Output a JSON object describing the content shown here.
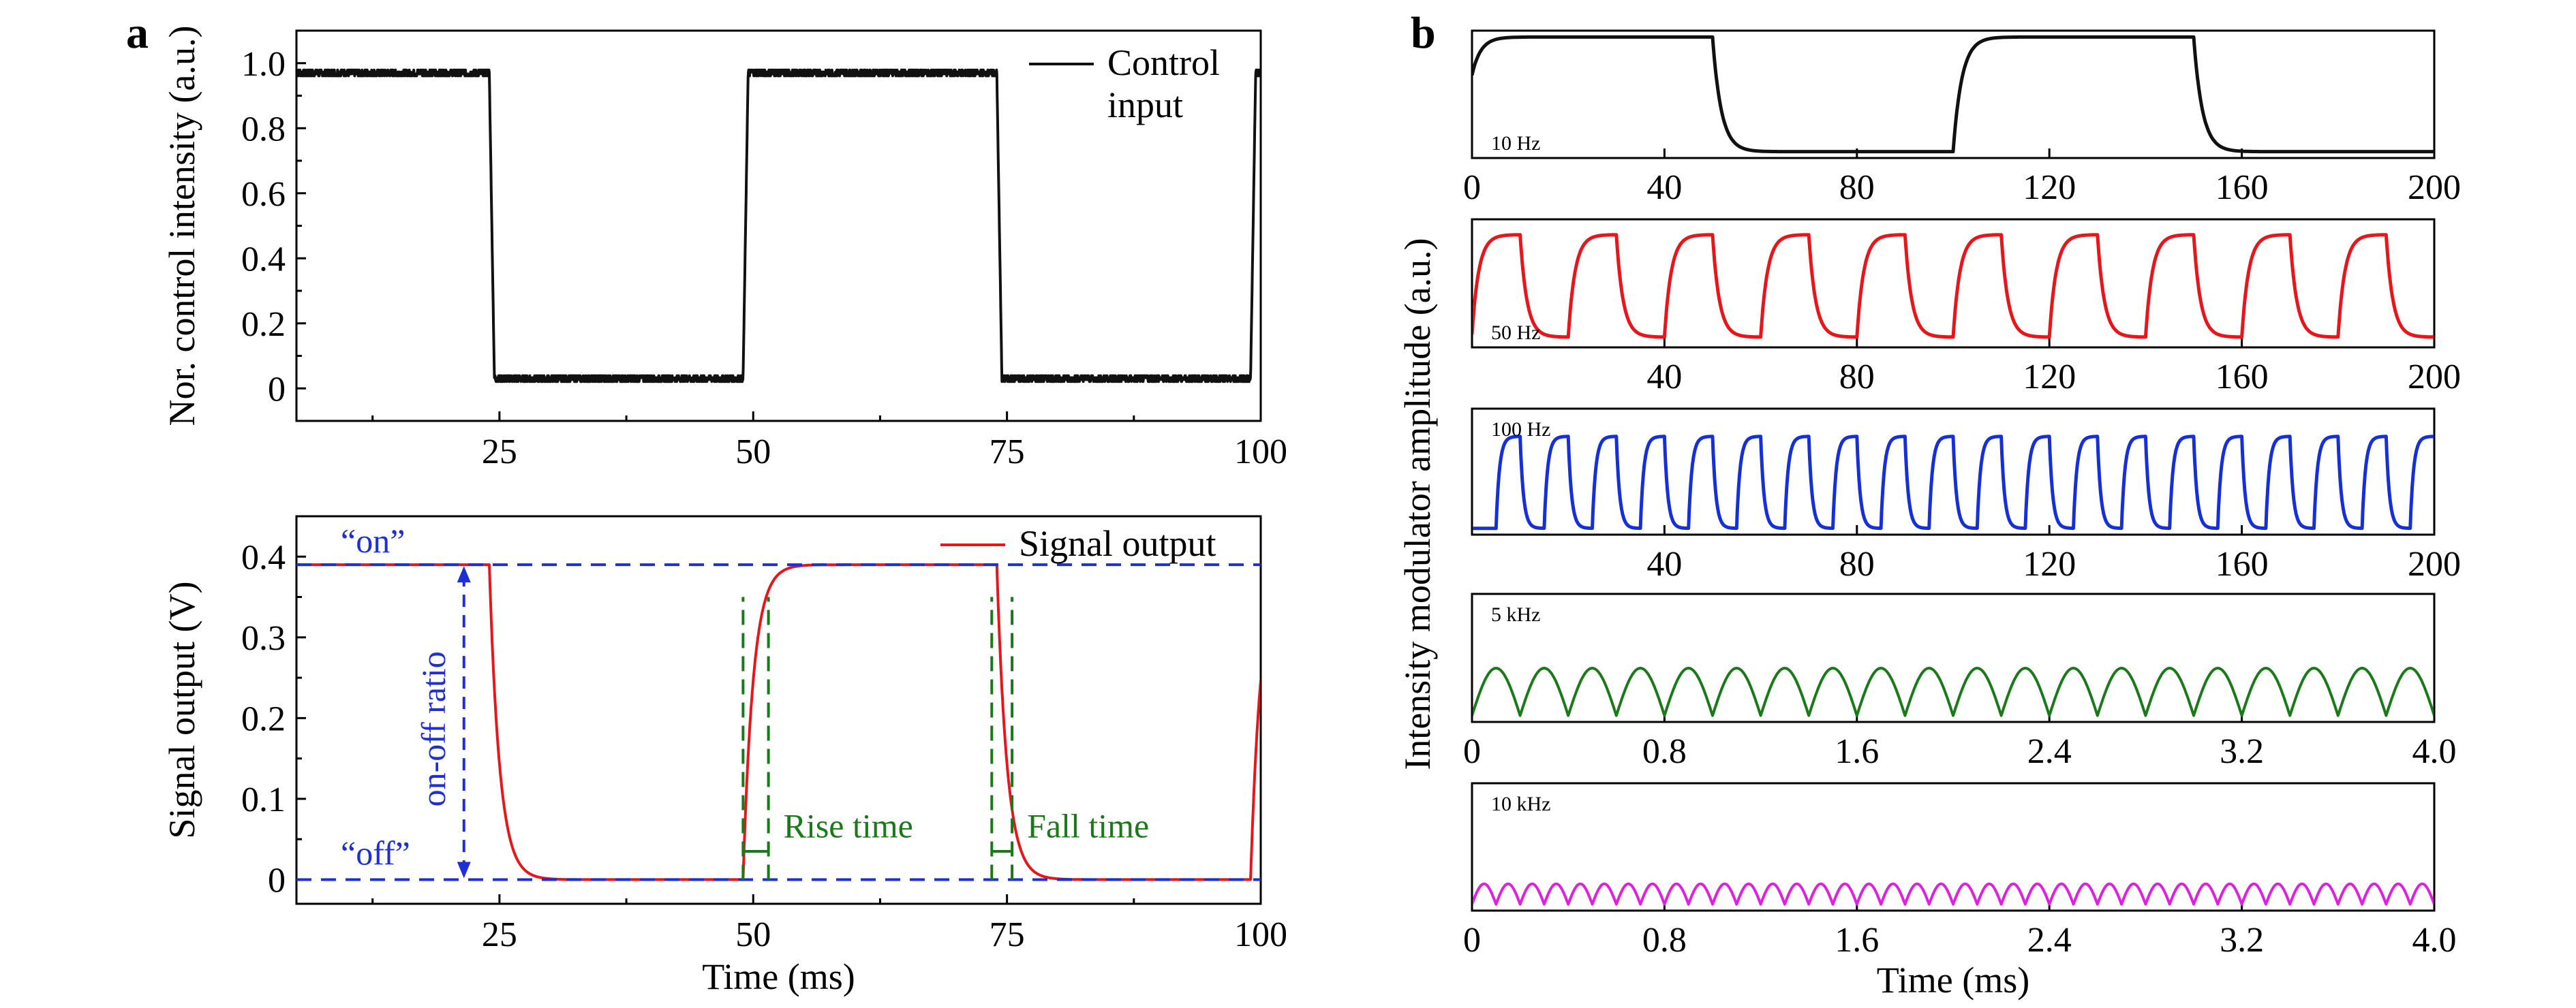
{
  "figure": {
    "panel_a_letter": "a",
    "panel_b_letter": "b"
  },
  "colors": {
    "black": "#111111",
    "red": "#e8161b",
    "blue": "#1530d8",
    "green": "#1a7a1a",
    "magenta": "#e020e0",
    "dash_blue": "#1f2fd6",
    "dash_green": "#1a7a1a"
  },
  "chart_data": [
    {
      "id": "a-top",
      "type": "line",
      "ylabel": "Nor. control intensity (a.u.)",
      "xlim": [
        5,
        100
      ],
      "ylim": [
        -0.1,
        1.1
      ],
      "xticks": [
        25,
        50,
        75,
        100
      ],
      "xtick_labels": [
        "25",
        "50",
        "75",
        "100"
      ],
      "yticks": [
        0,
        0.2,
        0.4,
        0.6,
        0.8,
        1.0
      ],
      "ytick_labels": [
        "0",
        "0.2",
        "0.4",
        "0.6",
        "0.8",
        "1.0"
      ],
      "legend": {
        "label_lines": [
          "Control",
          "input"
        ],
        "position": "top-right"
      },
      "series": [
        {
          "name": "Control input",
          "color": "black",
          "waveform": "square",
          "high": 0.97,
          "low": 0.03,
          "transitions_ms": [
            24,
            49,
            74,
            99
          ],
          "start_state": "high",
          "edge_ms": 0.5
        }
      ]
    },
    {
      "id": "a-bottom",
      "type": "line",
      "xlabel": "Time (ms)",
      "ylabel": "Signal output (V)",
      "xlim": [
        5,
        100
      ],
      "ylim": [
        -0.03,
        0.45
      ],
      "xticks": [
        25,
        50,
        75,
        100
      ],
      "xtick_labels": [
        "25",
        "50",
        "75",
        "100"
      ],
      "yticks": [
        0,
        0.1,
        0.2,
        0.3,
        0.4
      ],
      "ytick_labels": [
        "0",
        "0.1",
        "0.2",
        "0.3",
        "0.4"
      ],
      "legend": {
        "label": "Signal output",
        "position": "top-right"
      },
      "series": [
        {
          "name": "Signal output",
          "color": "red",
          "waveform": "rc-square",
          "high": 0.39,
          "low": 0.0,
          "transitions_ms": [
            24,
            49,
            74,
            99
          ],
          "start_state": "high",
          "tau_ms": 1.0
        }
      ],
      "reference_lines": {
        "on_level": 0.39,
        "off_level": 0.0
      },
      "annotations": {
        "on_label": "“on”",
        "off_label": "“off”",
        "ratio_label": "on-off ratio",
        "ratio_arrow_x": 21.5,
        "rise_label": "Rise time",
        "fall_label": "Fall time",
        "rise_marks_ms": [
          49,
          51.5
        ],
        "fall_marks_ms": [
          73.5,
          75.5
        ],
        "mark_top_level": 0.35,
        "mark_bottom_level": 0.035
      }
    },
    {
      "id": "b-10hz",
      "type": "line",
      "freq_label": "10 Hz",
      "xlim": [
        0,
        200
      ],
      "ylim": [
        0,
        1
      ],
      "xticks": [
        0,
        40,
        80,
        120,
        160,
        200
      ],
      "xtick_labels": [
        "0",
        "40",
        "80",
        "120",
        "160",
        "200"
      ],
      "series": [
        {
          "name": "10 Hz",
          "color": "black",
          "waveform": "rc-square",
          "period": 100,
          "high": 0.95,
          "low": 0.05,
          "tau": 1.8,
          "start_state": "high",
          "start_from": 0.65
        }
      ]
    },
    {
      "id": "b-50hz",
      "type": "line",
      "freq_label": "50 Hz",
      "xlim": [
        0,
        200
      ],
      "ylim": [
        0,
        1
      ],
      "xticks": [
        40,
        80,
        120,
        160,
        200
      ],
      "xtick_labels": [
        "40",
        "80",
        "120",
        "160",
        "200"
      ],
      "series": [
        {
          "name": "50 Hz",
          "color": "red",
          "waveform": "rc-square",
          "period": 20,
          "high": 0.88,
          "low": 0.08,
          "tau": 1.4,
          "start_state": "high",
          "start_from": 0.1
        }
      ]
    },
    {
      "id": "b-100hz",
      "type": "line",
      "freq_label": "100 Hz",
      "xlim": [
        0,
        200
      ],
      "ylim": [
        0,
        1
      ],
      "xticks": [
        40,
        80,
        120,
        160,
        200
      ],
      "xtick_labels": [
        "40",
        "80",
        "120",
        "160",
        "200"
      ],
      "series": [
        {
          "name": "100 Hz",
          "color": "blue",
          "waveform": "rc-square",
          "period": 10,
          "high": 0.78,
          "low": 0.05,
          "tau": 0.7,
          "start_state": "low",
          "start_from": 0.05
        }
      ]
    },
    {
      "id": "b-5khz",
      "type": "line",
      "freq_label": "5 kHz",
      "xlim": [
        0,
        4.0
      ],
      "ylim": [
        0,
        1
      ],
      "xticks": [
        0,
        0.8,
        1.6,
        2.4,
        3.2,
        4.0
      ],
      "xtick_labels": [
        "0",
        "0.8",
        "1.6",
        "2.4",
        "3.2",
        "4.0"
      ],
      "series": [
        {
          "name": "5 kHz",
          "color": "green",
          "waveform": "arch",
          "period": 0.2,
          "high": 0.42,
          "low": 0.05,
          "phase": 0.0
        }
      ]
    },
    {
      "id": "b-10khz",
      "type": "line",
      "freq_label": "10 kHz",
      "xlabel": "Time (ms)",
      "xlim": [
        0,
        4.0
      ],
      "ylim": [
        0,
        1
      ],
      "xticks": [
        0,
        0.8,
        1.6,
        2.4,
        3.2,
        4.0
      ],
      "xtick_labels": [
        "0",
        "0.8",
        "1.6",
        "2.4",
        "3.2",
        "4.0"
      ],
      "series": [
        {
          "name": "10 kHz",
          "color": "magenta",
          "waveform": "arch",
          "period": 0.1,
          "high": 0.21,
          "low": 0.05,
          "phase": 0.0
        }
      ]
    }
  ],
  "panel_b_ylabel": "Intensity modulator amplitude (a.u.)"
}
